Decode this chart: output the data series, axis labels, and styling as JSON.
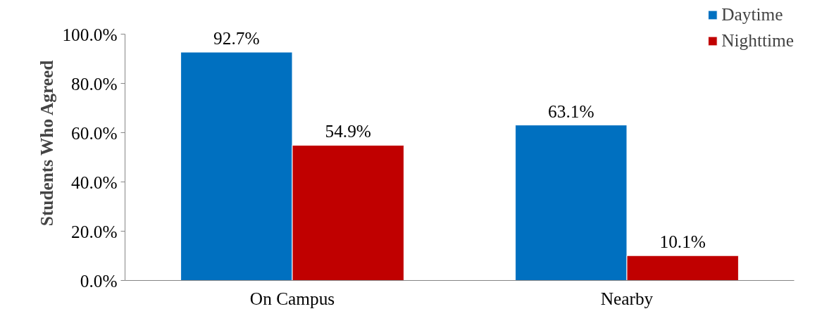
{
  "chart_data": {
    "type": "bar",
    "ylabel": "Students Who Agreed",
    "categories": [
      "On Campus",
      "Nearby"
    ],
    "series": [
      {
        "name": "Daytime",
        "color": "#0070c0",
        "values": [
          92.7,
          63.1
        ],
        "value_labels": [
          "92.7%",
          "63.1%"
        ]
      },
      {
        "name": "Nighttime",
        "color": "#c00000",
        "values": [
          54.9,
          10.1
        ],
        "value_labels": [
          "54.9%",
          "10.1%"
        ]
      }
    ],
    "ylim": [
      0,
      100
    ],
    "yticks": [
      {
        "value": 0,
        "label": "0.0%"
      },
      {
        "value": 20,
        "label": "20.0%"
      },
      {
        "value": 40,
        "label": "40.0%"
      },
      {
        "value": 60,
        "label": "60.0%"
      },
      {
        "value": 80,
        "label": "80.0%"
      },
      {
        "value": 100,
        "label": "100.0%"
      }
    ],
    "grid": false,
    "legend": "top right"
  }
}
